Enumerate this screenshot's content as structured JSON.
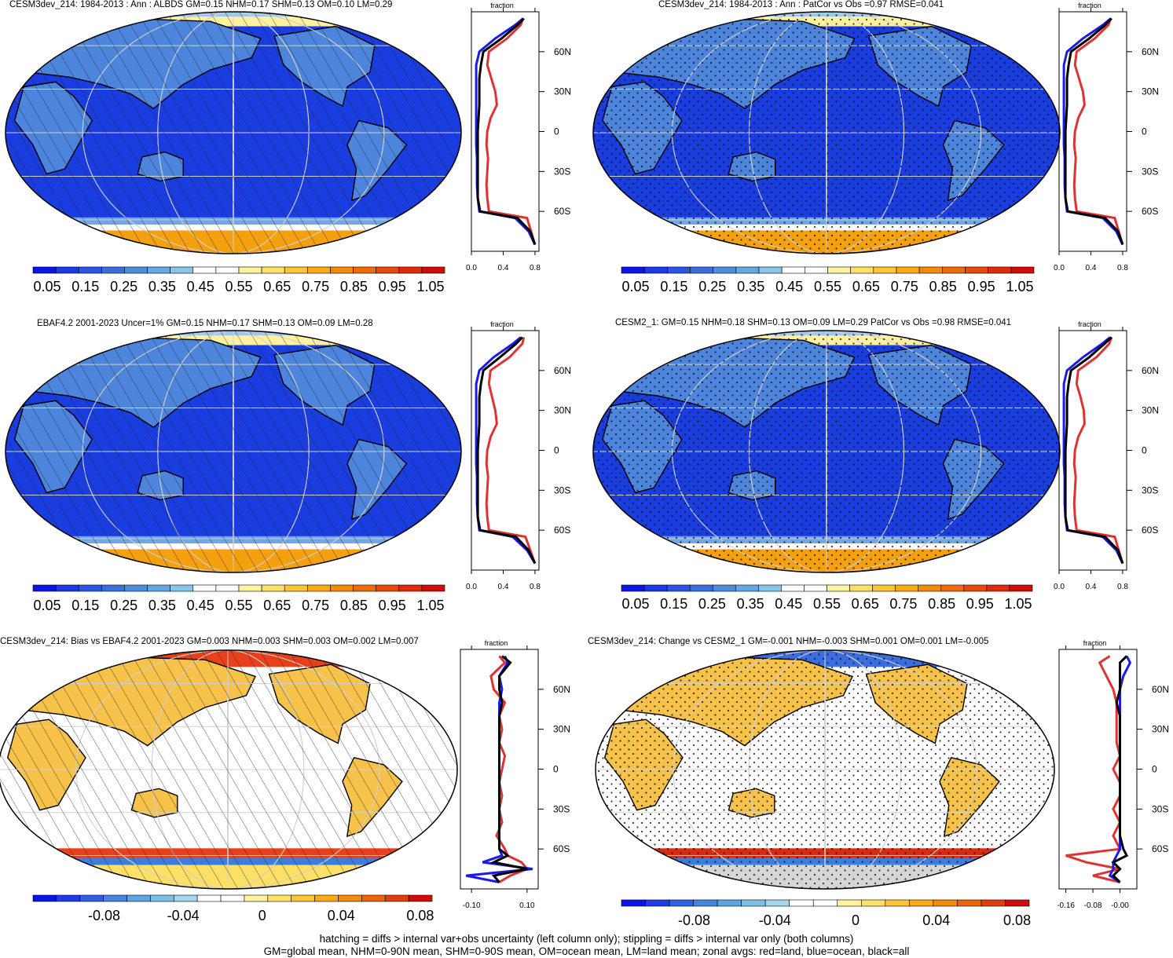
{
  "panels": [
    {
      "id": "model-abs",
      "title": "CESM3dev_214: 1984-2013 : Ann : ALBDS GM=0.15 NHM=0.17 SHM=0.13 OM=0.10 LM=0.29",
      "style": "hatch",
      "kind": "abs",
      "colorbar_labels": [
        "0.05",
        "0.15",
        "0.25",
        "0.35",
        "0.45",
        "0.55",
        "0.65",
        "0.75",
        "0.85",
        "0.95",
        "1.05"
      ],
      "zonal": {
        "header": "fraction",
        "xticks": [
          "0.0",
          "0.4",
          "0.8"
        ],
        "xvals": [
          0.0,
          0.4,
          0.8
        ],
        "xlim": [
          0.0,
          0.85
        ],
        "lat_labels": [
          "60N",
          "30N",
          "0",
          "30S",
          "60S"
        ],
        "lat_values": [
          60,
          30,
          0,
          -30,
          -60
        ]
      }
    },
    {
      "id": "model-cor",
      "title": "CESM3dev_214: 1984-2013 : Ann : PatCor vs Obs =0.97 RMSE=0.041",
      "style": "stipple",
      "kind": "abs",
      "colorbar_labels": [
        "0.05",
        "0.15",
        "0.25",
        "0.35",
        "0.45",
        "0.55",
        "0.65",
        "0.75",
        "0.85",
        "0.95",
        "1.05"
      ],
      "zonal": {
        "header": "fraction",
        "xticks": [
          "0.0",
          "0.4",
          "0.8"
        ],
        "xvals": [
          0.0,
          0.4,
          0.8
        ],
        "xlim": [
          0.0,
          0.85
        ],
        "lat_labels": [
          "60N",
          "30N",
          "0",
          "30S",
          "60S"
        ],
        "lat_values": [
          60,
          30,
          0,
          -30,
          -60
        ]
      }
    },
    {
      "id": "obs",
      "title": "EBAF4.2 2001-2023 Uncer=1% GM=0.15 NHM=0.17 SHM=0.13 OM=0.09 LM=0.28",
      "style": "hatch",
      "kind": "abs",
      "colorbar_labels": [
        "0.05",
        "0.15",
        "0.25",
        "0.35",
        "0.45",
        "0.55",
        "0.65",
        "0.75",
        "0.85",
        "0.95",
        "1.05"
      ],
      "zonal": {
        "header": "fraction",
        "xticks": [
          "0.0",
          "0.4",
          "0.8"
        ],
        "xvals": [
          0.0,
          0.4,
          0.8
        ],
        "xlim": [
          0.0,
          0.85
        ],
        "lat_labels": [
          "60N",
          "30N",
          "0",
          "30S",
          "60S"
        ],
        "lat_values": [
          60,
          30,
          0,
          -30,
          -60
        ]
      }
    },
    {
      "id": "cesm2",
      "title": "CESM2_1: GM=0.15 NHM=0.18 SHM=0.13 OM=0.09 LM=0.29 PatCor vs Obs =0.98 RMSE=0.041",
      "style": "stipple",
      "kind": "abs",
      "colorbar_labels": [
        "0.05",
        "0.15",
        "0.25",
        "0.35",
        "0.45",
        "0.55",
        "0.65",
        "0.75",
        "0.85",
        "0.95",
        "1.05"
      ],
      "zonal": {
        "header": "fraction",
        "xticks": [
          "0.0",
          "0.4",
          "0.8"
        ],
        "xvals": [
          0.0,
          0.4,
          0.8
        ],
        "xlim": [
          0.0,
          0.85
        ],
        "lat_labels": [
          "60N",
          "30N",
          "0",
          "30S",
          "60S"
        ],
        "lat_values": [
          60,
          30,
          0,
          -30,
          -60
        ]
      }
    },
    {
      "id": "bias",
      "title": "CESM3dev_214: Bias vs EBAF4.2 2001-2023 GM=0.003 NHM=0.003 SHM=0.003 OM=0.002 LM=0.007",
      "style": "hatch",
      "kind": "diff",
      "colorbar_labels": [
        "-0.08",
        "-0.04",
        "0",
        "0.04",
        "0.08"
      ],
      "zonal": {
        "header": "fraction",
        "xticks": [
          "-0.10",
          "0.10"
        ],
        "xvals": [
          -0.1,
          0.1
        ],
        "xlim": [
          -0.14,
          0.14
        ],
        "lat_labels": [
          "60N",
          "30N",
          "0",
          "30S",
          "60S"
        ],
        "lat_values": [
          60,
          30,
          0,
          -30,
          -60
        ]
      }
    },
    {
      "id": "change",
      "title": "CESM3dev_214: Change vs CESM2_1 GM=-0.001 NHM=-0.003 SHM=0.001 OM=0.001 LM=-0.005",
      "style": "stipple",
      "kind": "diff",
      "colorbar_labels": [
        "-0.08",
        "-0.04",
        "0",
        "0.04",
        "0.08"
      ],
      "zonal": {
        "header": "fraction",
        "xticks": [
          "-0.16",
          "-0.08",
          "-0.00"
        ],
        "xvals": [
          -0.16,
          -0.08,
          0.0
        ],
        "xlim": [
          -0.18,
          0.05
        ],
        "lat_labels": [
          "60N",
          "30N",
          "0",
          "30S",
          "60S"
        ],
        "lat_values": [
          60,
          30,
          0,
          -30,
          -60
        ]
      }
    }
  ],
  "colors": {
    "abs_palette": [
      "#0a14e6",
      "#1a3ae8",
      "#2a55e4",
      "#3a6fe0",
      "#4c8ddf",
      "#62a8e3",
      "#89c4ea",
      "#ffffff",
      "#ffffff",
      "#fff3a0",
      "#ffe066",
      "#ffc533",
      "#ffaa10",
      "#f58a0a",
      "#f06a0a",
      "#e84a0a",
      "#e02a0a",
      "#d10a0a"
    ],
    "diff_palette": [
      "#0a14e6",
      "#1e3ce8",
      "#3060e4",
      "#4584e0",
      "#5ea4e0",
      "#7cc0e6",
      "#a4d6ee",
      "#ffffff",
      "#ffffff",
      "#fff3a0",
      "#ffe066",
      "#ffc533",
      "#ffaa10",
      "#f58a0a",
      "#ee640a",
      "#e43c0a",
      "#d10a0a"
    ],
    "land": "#d33",
    "ocean": "#1a1aee",
    "all": "#000000"
  },
  "footer": {
    "line1": "hatching = diffs > internal var+obs uncertainty (left column only); stippling = diffs > internal var only (both columns)",
    "line2": "GM=global mean, NHM=0-90N mean, SHM=0-90S mean, OM=ocean mean, LM=land mean; zonal avgs: red=land, blue=ocean, black=all"
  },
  "chart_data": [
    {
      "type": "heatmap",
      "panel": "model-abs",
      "variable": "ALBDS",
      "units": "fraction",
      "GM": 0.15,
      "NHM": 0.17,
      "SHM": 0.13,
      "OM": 0.1,
      "LM": 0.29,
      "zonal_lat": [
        -85,
        -75,
        -65,
        -60,
        -50,
        -40,
        -30,
        -20,
        -10,
        0,
        10,
        20,
        30,
        40,
        50,
        60,
        70,
        80,
        85
      ],
      "zonal_land": [
        0.8,
        0.75,
        0.7,
        0.22,
        0.2,
        0.19,
        0.2,
        0.21,
        0.19,
        0.2,
        0.24,
        0.32,
        0.3,
        0.25,
        0.2,
        0.22,
        0.45,
        0.62,
        0.65
      ],
      "zonal_ocean": [
        0.8,
        0.72,
        0.55,
        0.1,
        0.08,
        0.07,
        0.07,
        0.07,
        0.06,
        0.06,
        0.06,
        0.06,
        0.06,
        0.06,
        0.06,
        0.1,
        0.3,
        0.55,
        0.65
      ],
      "zonal_all": [
        0.8,
        0.74,
        0.58,
        0.11,
        0.08,
        0.08,
        0.08,
        0.08,
        0.08,
        0.08,
        0.09,
        0.1,
        0.1,
        0.1,
        0.12,
        0.15,
        0.38,
        0.58,
        0.66
      ]
    },
    {
      "type": "heatmap",
      "panel": "model-cor",
      "variable": "ALBDS",
      "units": "fraction",
      "PatCor": 0.97,
      "RMSE": 0.041,
      "zonal_lat": [
        -85,
        -75,
        -65,
        -60,
        -50,
        -40,
        -30,
        -20,
        -10,
        0,
        10,
        20,
        30,
        40,
        50,
        60,
        70,
        80,
        85
      ],
      "zonal_land": [
        0.8,
        0.75,
        0.7,
        0.22,
        0.2,
        0.19,
        0.2,
        0.21,
        0.19,
        0.2,
        0.24,
        0.32,
        0.3,
        0.25,
        0.2,
        0.22,
        0.45,
        0.62,
        0.65
      ],
      "zonal_ocean": [
        0.8,
        0.72,
        0.55,
        0.1,
        0.08,
        0.07,
        0.07,
        0.07,
        0.06,
        0.06,
        0.06,
        0.06,
        0.06,
        0.06,
        0.06,
        0.1,
        0.3,
        0.55,
        0.65
      ],
      "zonal_all": [
        0.8,
        0.74,
        0.58,
        0.11,
        0.08,
        0.08,
        0.08,
        0.08,
        0.08,
        0.08,
        0.09,
        0.1,
        0.1,
        0.1,
        0.12,
        0.15,
        0.38,
        0.58,
        0.66
      ]
    },
    {
      "type": "heatmap",
      "panel": "obs",
      "variable": "ALBDS",
      "units": "fraction",
      "GM": 0.15,
      "NHM": 0.17,
      "SHM": 0.13,
      "OM": 0.09,
      "LM": 0.28,
      "zonal_lat": [
        -85,
        -75,
        -65,
        -60,
        -50,
        -40,
        -30,
        -20,
        -10,
        0,
        10,
        20,
        30,
        40,
        50,
        60,
        70,
        80,
        85
      ],
      "zonal_land": [
        0.8,
        0.74,
        0.68,
        0.22,
        0.2,
        0.19,
        0.2,
        0.21,
        0.19,
        0.2,
        0.24,
        0.32,
        0.3,
        0.26,
        0.22,
        0.24,
        0.48,
        0.64,
        0.66
      ],
      "zonal_ocean": [
        0.8,
        0.7,
        0.52,
        0.1,
        0.08,
        0.07,
        0.07,
        0.07,
        0.06,
        0.06,
        0.06,
        0.06,
        0.06,
        0.06,
        0.06,
        0.1,
        0.28,
        0.52,
        0.62
      ],
      "zonal_all": [
        0.8,
        0.72,
        0.56,
        0.11,
        0.08,
        0.08,
        0.08,
        0.08,
        0.08,
        0.08,
        0.09,
        0.1,
        0.1,
        0.1,
        0.12,
        0.15,
        0.36,
        0.56,
        0.64
      ]
    },
    {
      "type": "heatmap",
      "panel": "cesm2",
      "variable": "ALBDS",
      "units": "fraction",
      "GM": 0.15,
      "NHM": 0.18,
      "SHM": 0.13,
      "OM": 0.09,
      "LM": 0.29,
      "PatCor": 0.98,
      "RMSE": 0.041,
      "zonal_lat": [
        -85,
        -75,
        -65,
        -60,
        -50,
        -40,
        -30,
        -20,
        -10,
        0,
        10,
        20,
        30,
        40,
        50,
        60,
        70,
        80,
        85
      ],
      "zonal_land": [
        0.8,
        0.75,
        0.7,
        0.22,
        0.2,
        0.19,
        0.2,
        0.21,
        0.19,
        0.2,
        0.24,
        0.32,
        0.31,
        0.27,
        0.22,
        0.24,
        0.47,
        0.63,
        0.66
      ],
      "zonal_ocean": [
        0.8,
        0.72,
        0.55,
        0.1,
        0.08,
        0.07,
        0.07,
        0.07,
        0.06,
        0.06,
        0.06,
        0.06,
        0.06,
        0.06,
        0.06,
        0.1,
        0.3,
        0.54,
        0.64
      ],
      "zonal_all": [
        0.8,
        0.74,
        0.58,
        0.11,
        0.08,
        0.08,
        0.08,
        0.08,
        0.08,
        0.08,
        0.09,
        0.1,
        0.1,
        0.1,
        0.12,
        0.15,
        0.38,
        0.57,
        0.66
      ]
    },
    {
      "type": "heatmap",
      "panel": "bias",
      "variable": "ALBDS bias",
      "units": "fraction",
      "GM": 0.003,
      "NHM": 0.003,
      "SHM": 0.003,
      "OM": 0.002,
      "LM": 0.007,
      "zonal_lat": [
        -85,
        -80,
        -75,
        -70,
        -65,
        -60,
        -50,
        -40,
        -30,
        -20,
        -10,
        0,
        10,
        20,
        30,
        40,
        50,
        60,
        70,
        80,
        85
      ],
      "zonal_land": [
        0.0,
        0.04,
        0.1,
        0.08,
        0.03,
        0.02,
        -0.01,
        0.01,
        0.0,
        0.01,
        0.0,
        0.01,
        0.02,
        0.0,
        0.01,
        0.0,
        0.02,
        -0.02,
        -0.03,
        0.02,
        0.0
      ],
      "zonal_ocean": [
        0.0,
        -0.12,
        0.12,
        -0.06,
        0.01,
        0.0,
        0.0,
        0.0,
        0.0,
        0.0,
        0.0,
        0.0,
        0.0,
        0.0,
        0.0,
        0.0,
        0.0,
        0.01,
        0.0,
        0.03,
        0.02
      ],
      "zonal_all": [
        0.0,
        -0.02,
        0.1,
        -0.02,
        0.03,
        0.0,
        0.0,
        0.0,
        0.0,
        0.0,
        0.0,
        0.0,
        0.0,
        0.0,
        0.0,
        0.0,
        0.01,
        0.0,
        0.0,
        0.04,
        0.01
      ]
    },
    {
      "type": "heatmap",
      "panel": "change",
      "variable": "ALBDS change",
      "units": "fraction",
      "GM": -0.001,
      "NHM": -0.003,
      "SHM": 0.001,
      "OM": 0.001,
      "LM": -0.005,
      "zonal_lat": [
        -85,
        -80,
        -75,
        -70,
        -65,
        -60,
        -50,
        -40,
        -30,
        -20,
        -10,
        0,
        10,
        20,
        30,
        40,
        50,
        60,
        70,
        80,
        85
      ],
      "zonal_land": [
        0.0,
        -0.08,
        0.0,
        -0.1,
        -0.16,
        0.0,
        -0.02,
        0.0,
        -0.02,
        0.0,
        0.0,
        -0.02,
        0.0,
        -0.01,
        -0.01,
        -0.01,
        -0.01,
        -0.02,
        -0.04,
        -0.06,
        -0.03
      ],
      "zonal_ocean": [
        0.0,
        -0.03,
        -0.02,
        -0.02,
        -0.01,
        0.0,
        0.0,
        0.0,
        0.0,
        0.0,
        0.0,
        0.0,
        0.0,
        0.0,
        0.0,
        0.0,
        0.0,
        0.0,
        0.01,
        0.03,
        0.02
      ],
      "zonal_all": [
        0.0,
        -0.02,
        0.0,
        -0.02,
        0.02,
        0.01,
        0.0,
        0.0,
        0.0,
        0.0,
        0.0,
        0.0,
        0.0,
        0.0,
        0.0,
        0.0,
        -0.01,
        0.0,
        0.0,
        0.0,
        0.02
      ]
    }
  ]
}
